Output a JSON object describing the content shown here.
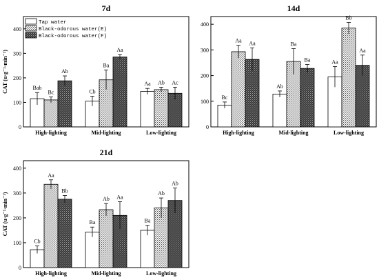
{
  "chart_data": [
    {
      "type": "bar",
      "title": "7d",
      "ylabel": "CAT (u·g⁻¹·min⁻¹)",
      "categories": [
        "High-lighting",
        "Mid-lighting",
        "Low-lighting"
      ],
      "ylim": [
        0,
        450
      ],
      "yticks": [
        0,
        100,
        200,
        300,
        400
      ],
      "legend": "top-left",
      "series": [
        {
          "name": "Tap water",
          "values": [
            115,
            105,
            145
          ],
          "errors": [
            25,
            20,
            12
          ],
          "labels": [
            "Bab",
            "Cb",
            "Aa"
          ]
        },
        {
          "name": "Black-odorous water(E)",
          "values": [
            110,
            192,
            152
          ],
          "errors": [
            12,
            40,
            10
          ],
          "labels": [
            "Bc",
            "Ba",
            "Ab"
          ]
        },
        {
          "name": "Black-odorous water(F)",
          "values": [
            188,
            285,
            137
          ],
          "errors": [
            20,
            10,
            25
          ],
          "labels": [
            "Ab",
            "Aa",
            "Ac"
          ]
        }
      ]
    },
    {
      "type": "bar",
      "title": "14d",
      "ylabel": "",
      "categories": [
        "High-lighting",
        "Mid-lighting",
        "Low-lighting"
      ],
      "ylim": [
        0,
        430
      ],
      "yticks": [
        0,
        100,
        200,
        300,
        400
      ],
      "series": [
        {
          "name": "Tap water",
          "values": [
            85,
            128,
            195
          ],
          "errors": [
            12,
            12,
            40
          ],
          "labels": [
            "Bc",
            "Ab",
            "Aa"
          ]
        },
        {
          "name": "Black-odorous water(E)",
          "values": [
            293,
            255,
            385
          ],
          "errors": [
            25,
            50,
            22
          ],
          "labels": [
            "Aa",
            "Ba",
            "Bb"
          ]
        },
        {
          "name": "Black-odorous water(F)",
          "values": [
            263,
            228,
            240
          ],
          "errors": [
            45,
            15,
            40
          ],
          "labels": [
            "Aa",
            "Ba",
            "Aa"
          ]
        }
      ]
    },
    {
      "type": "bar",
      "title": "21d",
      "ylabel": "CAT (u·g⁻¹·min⁻¹)",
      "categories": [
        "High-lighting",
        "Mid-lighting",
        "Low-lighting"
      ],
      "ylim": [
        0,
        430
      ],
      "yticks": [
        0,
        100,
        200,
        300,
        400
      ],
      "series": [
        {
          "name": "Tap water",
          "values": [
            72,
            143,
            150
          ],
          "errors": [
            15,
            20,
            20
          ],
          "labels": [
            "Cb",
            "Ba",
            "Ba"
          ]
        },
        {
          "name": "Black-odorous water(E)",
          "values": [
            335,
            233,
            240
          ],
          "errors": [
            18,
            25,
            40
          ],
          "labels": [
            "Aa",
            "Ab",
            "Ab"
          ]
        },
        {
          "name": "Black-odorous water(F)",
          "values": [
            275,
            210,
            270
          ],
          "errors": [
            15,
            55,
            50
          ],
          "labels": [
            "Bb",
            "Aa",
            "Ab"
          ]
        }
      ]
    }
  ]
}
